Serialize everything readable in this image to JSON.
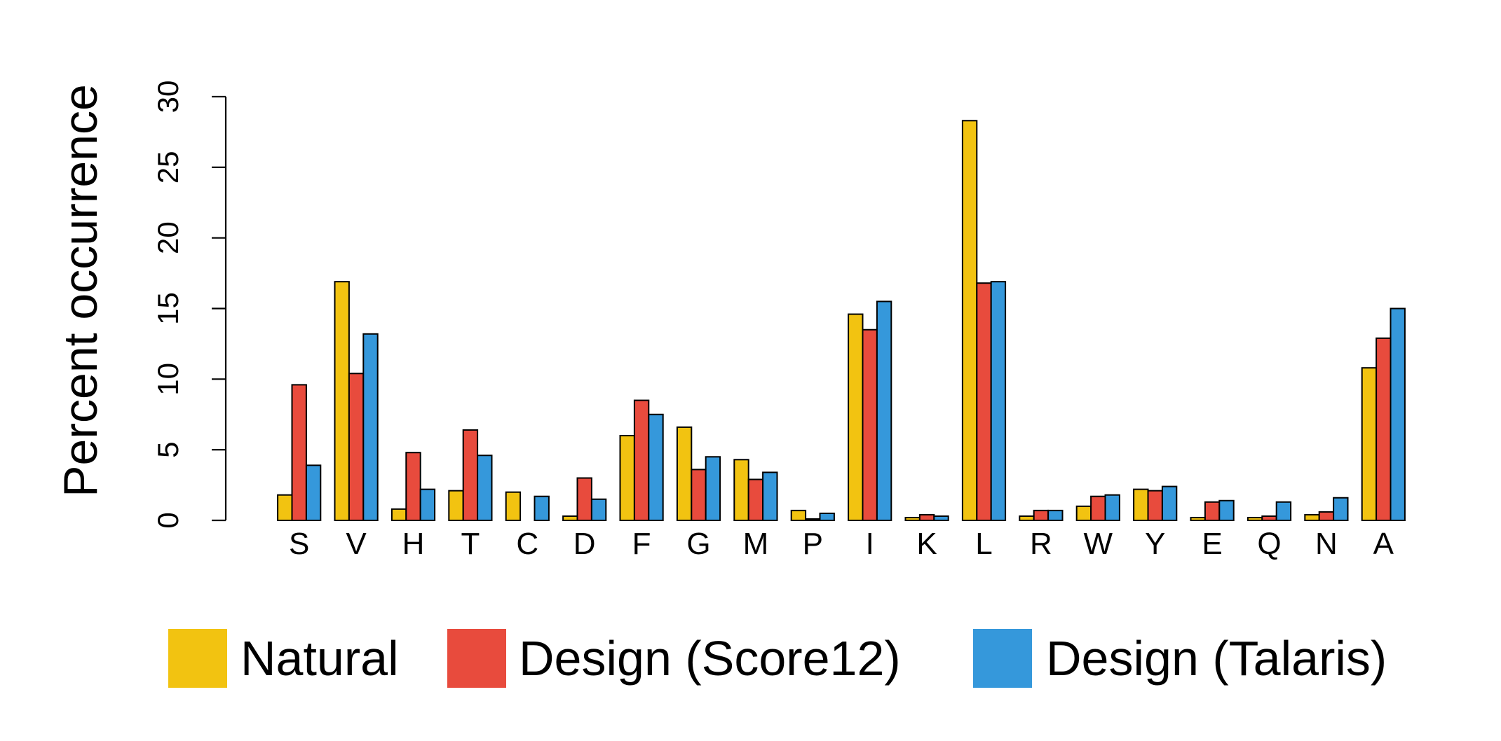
{
  "chart_data": {
    "type": "bar",
    "title": "",
    "xlabel": "",
    "ylabel": "Percent occurrence",
    "ylim": [
      0,
      30
    ],
    "yticks": [
      0,
      5,
      10,
      15,
      20,
      25,
      30
    ],
    "grid": false,
    "legend_position": "bottom",
    "categories": [
      "S",
      "V",
      "H",
      "T",
      "C",
      "D",
      "F",
      "G",
      "M",
      "P",
      "I",
      "K",
      "L",
      "R",
      "W",
      "Y",
      "E",
      "Q",
      "N",
      "A"
    ],
    "series": [
      {
        "name": "Natural",
        "color": "#F2C311",
        "values": [
          1.8,
          16.9,
          0.8,
          2.1,
          2.0,
          0.3,
          6.0,
          6.6,
          4.3,
          0.7,
          14.6,
          0.2,
          28.3,
          0.3,
          1.0,
          2.2,
          0.2,
          0.2,
          0.4,
          10.8
        ]
      },
      {
        "name": "Design (Score12)",
        "color": "#E84B3D",
        "values": [
          9.6,
          10.4,
          4.8,
          6.4,
          0.0,
          3.0,
          8.5,
          3.6,
          2.9,
          0.1,
          13.5,
          0.4,
          16.8,
          0.7,
          1.7,
          2.1,
          1.3,
          0.3,
          0.6,
          12.9
        ]
      },
      {
        "name": "Design (Talaris)",
        "color": "#3598DB",
        "values": [
          3.9,
          13.2,
          2.2,
          4.6,
          1.7,
          1.5,
          7.5,
          4.5,
          3.4,
          0.5,
          15.5,
          0.3,
          16.9,
          0.7,
          1.8,
          2.4,
          1.4,
          1.3,
          1.6,
          15.0
        ]
      }
    ]
  }
}
